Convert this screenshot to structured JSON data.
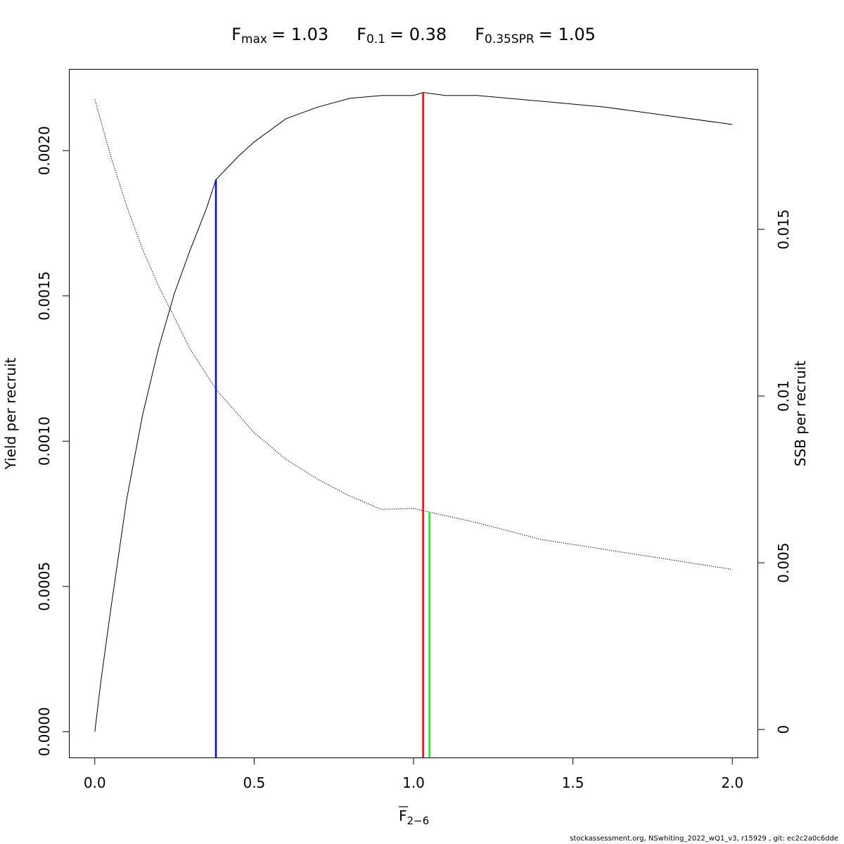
{
  "chart_data": {
    "type": "line",
    "title": {
      "fmax": {
        "main": "F",
        "sub": "max",
        "value": "= 1.03"
      },
      "f01": {
        "main": "F",
        "sub": "0.1",
        "value": "= 0.38"
      },
      "f035": {
        "main": "F",
        "sub": "0.35SPR",
        "value": "= 1.05"
      }
    },
    "xlabel": {
      "main": "F",
      "sub": "2−6",
      "overline": true
    },
    "ylabel_left": "Yield per recruit",
    "ylabel_right": "SSB per recruit",
    "xlim": [
      -0.08,
      2.08
    ],
    "ylim_left": [
      -9e-05,
      0.00228
    ],
    "ylim_right": [
      -0.00085,
      0.0198
    ],
    "x_ticks": [
      0,
      0.5,
      1,
      1.5,
      2
    ],
    "x_tick_labels": [
      "0.0",
      "0.5",
      "1.0",
      "1.5",
      "2.0"
    ],
    "y_left_ticks": [
      0,
      0.0005,
      0.001,
      0.0015,
      0.002
    ],
    "y_left_tick_labels": [
      "0.0000",
      "0.0005",
      "0.0010",
      "0.0015",
      "0.0020"
    ],
    "y_right_ticks": [
      0,
      0.005,
      0.01,
      0.015
    ],
    "y_right_tick_labels": [
      "0",
      "0.005",
      "0.01",
      "0.015"
    ],
    "series": [
      {
        "axis": "left",
        "line": "solid",
        "x": [
          0,
          0.02,
          0.05,
          0.1,
          0.15,
          0.2,
          0.25,
          0.3,
          0.35,
          0.38,
          0.45,
          0.5,
          0.6,
          0.7,
          0.8,
          0.9,
          1.0,
          1.03,
          1.1,
          1.2,
          1.4,
          1.6,
          1.8,
          2.0
        ],
        "y": [
          0,
          0.00018,
          0.00042,
          0.0008,
          0.00109,
          0.00132,
          0.00151,
          0.00166,
          0.0018,
          0.0019,
          0.00198,
          0.00203,
          0.00211,
          0.00215,
          0.00218,
          0.00219,
          0.00219,
          0.0022,
          0.00219,
          0.00219,
          0.00217,
          0.00215,
          0.00212,
          0.00209
        ]
      },
      {
        "axis": "right",
        "line": "dotted",
        "x": [
          0,
          0.05,
          0.1,
          0.15,
          0.2,
          0.3,
          0.38,
          0.5,
          0.6,
          0.7,
          0.8,
          0.9,
          1.0,
          1.05,
          1.2,
          1.4,
          1.6,
          1.8,
          2.0
        ],
        "y": [
          0.0189,
          0.0172,
          0.0157,
          0.0144,
          0.0133,
          0.0114,
          0.0102,
          0.0089,
          0.0081,
          0.0075,
          0.007,
          0.0066,
          0.00663,
          0.00652,
          0.0062,
          0.0057,
          0.0054,
          0.0051,
          0.0048
        ]
      }
    ],
    "reference_lines": [
      {
        "name": "F0.1",
        "x": 0.38,
        "y_left": 0.0019,
        "color": "#0000ff"
      },
      {
        "name": "Fmax",
        "x": 1.03,
        "y_left": 0.0022,
        "color": "#ff0000"
      },
      {
        "name": "F0.35SPR",
        "x": 1.05,
        "y_right": 0.00652,
        "color": "#00ff00"
      }
    ],
    "grid": false
  },
  "footer": "stockassessment.org, NSwhiting_2022_wQ1_v3, r15929 , git: ec2c2a0c6dde"
}
